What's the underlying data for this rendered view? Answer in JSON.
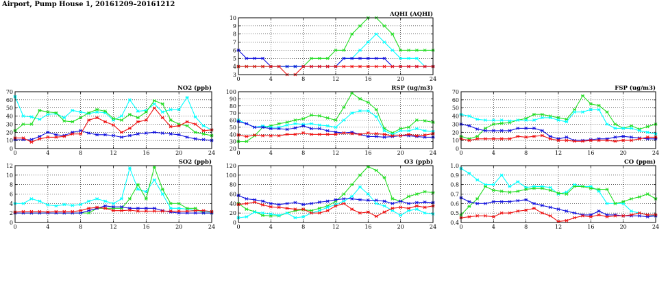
{
  "page": {
    "title": "Airport, Pump House 1, 20161209–20161212"
  },
  "colors": {
    "cyan": "#00ffff",
    "green": "#22dd22",
    "blue": "#1111dd",
    "red": "#ee1111"
  },
  "chart_data": [
    {
      "id": "aqhi",
      "type": "line",
      "title": "AQHI (AQHI)",
      "xlim": [
        0,
        24
      ],
      "xticks": [
        0,
        4,
        8,
        12,
        16,
        20,
        24
      ],
      "ylim": [
        3,
        10
      ],
      "yticks": [
        3,
        4,
        5,
        6,
        7,
        8,
        9,
        10
      ],
      "grid": true,
      "series": [
        {
          "color": "green",
          "values": [
            4,
            4,
            4,
            4,
            4,
            4,
            4,
            4,
            4,
            5,
            5,
            5,
            6,
            6,
            8,
            9,
            10,
            10,
            9,
            8,
            6,
            6,
            6,
            6,
            6
          ]
        },
        {
          "color": "cyan",
          "values": [
            4,
            4,
            4,
            4,
            4,
            4,
            4,
            4,
            4,
            4,
            4,
            4,
            4,
            5,
            5,
            6,
            7,
            8,
            7,
            6,
            5,
            5,
            5,
            4,
            4
          ]
        },
        {
          "color": "blue",
          "values": [
            6,
            5,
            5,
            5,
            4,
            4,
            4,
            4,
            4,
            4,
            4,
            4,
            4,
            5,
            5,
            5,
            5,
            5,
            5,
            4,
            4,
            4,
            4,
            4,
            4
          ]
        },
        {
          "color": "red",
          "values": [
            4,
            4,
            4,
            4,
            4,
            4,
            3,
            3,
            4,
            4,
            4,
            4,
            4,
            4,
            4,
            4,
            4,
            4,
            4,
            4,
            4,
            4,
            4,
            4,
            4
          ]
        }
      ]
    },
    {
      "id": "no2",
      "type": "line",
      "title": "NO2 (ppb)",
      "xlim": [
        0,
        24
      ],
      "xticks": [
        0,
        4,
        8,
        12,
        16,
        20,
        24
      ],
      "ylim": [
        0,
        70
      ],
      "yticks": [
        0,
        10,
        20,
        30,
        40,
        50,
        60,
        70
      ],
      "grid": true,
      "series": [
        {
          "color": "cyan",
          "values": [
            64,
            40,
            39,
            36,
            42,
            43,
            38,
            47,
            45,
            43,
            45,
            44,
            35,
            40,
            60,
            46,
            47,
            55,
            45,
            48,
            48,
            63,
            39,
            28,
            23
          ]
        },
        {
          "color": "green",
          "values": [
            22,
            30,
            30,
            47,
            45,
            44,
            34,
            33,
            38,
            44,
            48,
            46,
            37,
            35,
            42,
            38,
            45,
            59,
            55,
            35,
            30,
            28,
            20,
            18,
            16
          ]
        },
        {
          "color": "blue",
          "values": [
            11,
            11,
            11,
            15,
            20,
            17,
            16,
            20,
            22,
            19,
            17,
            17,
            16,
            14,
            16,
            18,
            19,
            20,
            19,
            18,
            17,
            14,
            12,
            11,
            10
          ]
        },
        {
          "color": "red",
          "values": [
            13,
            13,
            8,
            12,
            14,
            14,
            15,
            18,
            18,
            35,
            38,
            33,
            29,
            20,
            25,
            33,
            35,
            50,
            38,
            27,
            28,
            33,
            30,
            22,
            23
          ]
        }
      ]
    },
    {
      "id": "rsp",
      "type": "line",
      "title": "RSP (ug/m3)",
      "xlim": [
        0,
        24
      ],
      "xticks": [
        0,
        4,
        8,
        12,
        16,
        20,
        24
      ],
      "ylim": [
        20,
        100
      ],
      "yticks": [
        20,
        30,
        40,
        50,
        60,
        70,
        80,
        90,
        100
      ],
      "grid": true,
      "series": [
        {
          "color": "green",
          "values": [
            30,
            30,
            38,
            50,
            52,
            55,
            57,
            60,
            62,
            67,
            66,
            63,
            60,
            78,
            98,
            90,
            85,
            75,
            48,
            42,
            48,
            50,
            60,
            59,
            57
          ]
        },
        {
          "color": "cyan",
          "values": [
            60,
            55,
            50,
            52,
            50,
            50,
            53,
            55,
            54,
            55,
            53,
            52,
            50,
            60,
            70,
            73,
            73,
            65,
            45,
            40,
            45,
            45,
            48,
            45,
            44
          ]
        },
        {
          "color": "blue",
          "values": [
            58,
            55,
            50,
            50,
            48,
            48,
            47,
            49,
            52,
            48,
            48,
            45,
            43,
            42,
            43,
            40,
            37,
            37,
            36,
            37,
            38,
            38,
            37,
            36,
            36
          ]
        },
        {
          "color": "red",
          "values": [
            39,
            37,
            39,
            38,
            38,
            38,
            40,
            40,
            42,
            40,
            40,
            40,
            40,
            42,
            41,
            40,
            42,
            41,
            40,
            38,
            38,
            40,
            38,
            39,
            41
          ]
        }
      ]
    },
    {
      "id": "fsp",
      "type": "line",
      "title": "FSP (ug/m3)",
      "xlim": [
        0,
        24
      ],
      "xticks": [
        0,
        4,
        8,
        12,
        16,
        20,
        24
      ],
      "ylim": [
        0,
        70
      ],
      "yticks": [
        0,
        10,
        20,
        30,
        40,
        50,
        60,
        70
      ],
      "grid": true,
      "series": [
        {
          "color": "green",
          "values": [
            15,
            12,
            15,
            25,
            30,
            31,
            32,
            35,
            37,
            42,
            42,
            40,
            38,
            36,
            48,
            65,
            55,
            53,
            45,
            30,
            25,
            28,
            24,
            27,
            30
          ]
        },
        {
          "color": "cyan",
          "values": [
            42,
            40,
            36,
            35,
            35,
            35,
            34,
            35,
            35,
            35,
            38,
            38,
            35,
            33,
            45,
            45,
            48,
            48,
            30,
            25,
            25,
            25,
            22,
            20,
            18
          ]
        },
        {
          "color": "blue",
          "values": [
            30,
            28,
            24,
            22,
            22,
            22,
            22,
            25,
            25,
            25,
            22,
            15,
            12,
            14,
            10,
            10,
            11,
            12,
            12,
            14,
            15,
            14,
            13,
            12,
            12
          ]
        },
        {
          "color": "red",
          "values": [
            12,
            10,
            12,
            12,
            12,
            12,
            12,
            15,
            14,
            15,
            16,
            12,
            10,
            10,
            9,
            9,
            10,
            10,
            10,
            9,
            10,
            10,
            12,
            14,
            14
          ]
        }
      ]
    },
    {
      "id": "so2",
      "type": "line",
      "title": "SO2 (ppb)",
      "xlim": [
        0,
        24
      ],
      "xticks": [
        0,
        4,
        8,
        12,
        16,
        20,
        24
      ],
      "ylim": [
        0,
        12
      ],
      "yticks": [
        0,
        2,
        4,
        6,
        8,
        10,
        12
      ],
      "grid": true,
      "series": [
        {
          "color": "cyan",
          "values": [
            4,
            4,
            5,
            4.5,
            3.7,
            3.5,
            3.8,
            3.6,
            3.8,
            4.5,
            5,
            4.5,
            4,
            5,
            11.5,
            7,
            6.5,
            9,
            6,
            3,
            3,
            2.8,
            2.5,
            2.3,
            2.2
          ]
        },
        {
          "color": "green",
          "values": [
            2,
            2,
            2,
            2,
            2,
            2,
            2,
            2,
            2,
            2,
            3,
            3,
            3,
            3,
            5,
            8,
            5,
            11.7,
            7,
            4,
            4,
            3,
            3,
            2,
            2
          ]
        },
        {
          "color": "blue",
          "values": [
            2,
            2,
            2,
            2,
            2,
            2,
            2,
            2,
            2,
            2.5,
            3,
            3.5,
            3.3,
            3.3,
            3,
            3,
            3,
            3,
            2.5,
            2.2,
            2,
            2,
            2,
            2,
            2
          ]
        },
        {
          "color": "red",
          "values": [
            2.2,
            2.3,
            2.3,
            2.3,
            2.2,
            2.3,
            2.3,
            2.3,
            2.5,
            3,
            3.2,
            3,
            2.5,
            2.5,
            2.6,
            2.4,
            2.4,
            2.4,
            2.4,
            2.4,
            2.4,
            2.4,
            2.5,
            2.5,
            2.3
          ]
        }
      ]
    },
    {
      "id": "o3",
      "type": "line",
      "title": "O3 (ppb)",
      "xlim": [
        0,
        24
      ],
      "xticks": [
        0,
        4,
        8,
        12,
        16,
        20,
        24
      ],
      "ylim": [
        0,
        120
      ],
      "yticks": [
        0,
        20,
        40,
        60,
        80,
        100,
        120
      ],
      "grid": true,
      "series": [
        {
          "color": "green",
          "values": [
            40,
            28,
            23,
            15,
            14,
            14,
            20,
            25,
            27,
            25,
            30,
            35,
            45,
            60,
            80,
            100,
            118,
            110,
            95,
            50,
            45,
            55,
            60,
            65,
            63
          ]
        },
        {
          "color": "cyan",
          "values": [
            10,
            12,
            22,
            20,
            18,
            15,
            20,
            10,
            12,
            20,
            25,
            32,
            38,
            45,
            55,
            75,
            60,
            40,
            35,
            25,
            15,
            25,
            28,
            20,
            18
          ]
        },
        {
          "color": "blue",
          "values": [
            57,
            50,
            48,
            45,
            40,
            38,
            40,
            42,
            38,
            40,
            43,
            45,
            48,
            50,
            50,
            48,
            47,
            47,
            45,
            40,
            45,
            40,
            42,
            43,
            42
          ]
        },
        {
          "color": "red",
          "values": [
            38,
            40,
            43,
            37,
            33,
            32,
            30,
            28,
            28,
            20,
            20,
            25,
            35,
            40,
            28,
            20,
            22,
            13,
            22,
            30,
            32,
            30,
            35,
            32,
            35
          ]
        }
      ]
    },
    {
      "id": "co",
      "type": "line",
      "title": "CO (ppm)",
      "xlim": [
        0,
        24
      ],
      "xticks": [
        0,
        4,
        8,
        12,
        16,
        20,
        24
      ],
      "ylim": [
        0.4,
        1.0
      ],
      "yticks": [
        0.4,
        0.5,
        0.6,
        0.7,
        0.8,
        0.9,
        1.0
      ],
      "grid": true,
      "series": [
        {
          "color": "cyan",
          "values": [
            0.97,
            0.92,
            0.85,
            0.8,
            0.8,
            0.9,
            0.78,
            0.83,
            0.77,
            0.78,
            0.78,
            0.77,
            0.7,
            0.72,
            0.8,
            0.78,
            0.78,
            0.73,
            0.6,
            0.6,
            0.6,
            0.52,
            0.5,
            0.48,
            0.47
          ]
        },
        {
          "color": "green",
          "values": [
            0.48,
            0.57,
            0.65,
            0.78,
            0.74,
            0.73,
            0.72,
            0.73,
            0.75,
            0.76,
            0.76,
            0.74,
            0.71,
            0.7,
            0.78,
            0.78,
            0.76,
            0.75,
            0.75,
            0.6,
            0.62,
            0.65,
            0.67,
            0.7,
            0.65
          ]
        },
        {
          "color": "blue",
          "values": [
            0.66,
            0.62,
            0.6,
            0.6,
            0.62,
            0.62,
            0.62,
            0.63,
            0.64,
            0.6,
            0.58,
            0.56,
            0.54,
            0.52,
            0.5,
            0.48,
            0.48,
            0.52,
            0.48,
            0.48,
            0.47,
            0.47,
            0.47,
            0.46,
            0.47
          ]
        },
        {
          "color": "red",
          "values": [
            0.45,
            0.46,
            0.47,
            0.47,
            0.46,
            0.5,
            0.5,
            0.52,
            0.53,
            0.55,
            0.5,
            0.47,
            0.41,
            0.42,
            0.45,
            0.47,
            0.46,
            0.48,
            0.46,
            0.47,
            0.47,
            0.48,
            0.5,
            0.48,
            0.48
          ]
        }
      ]
    }
  ]
}
